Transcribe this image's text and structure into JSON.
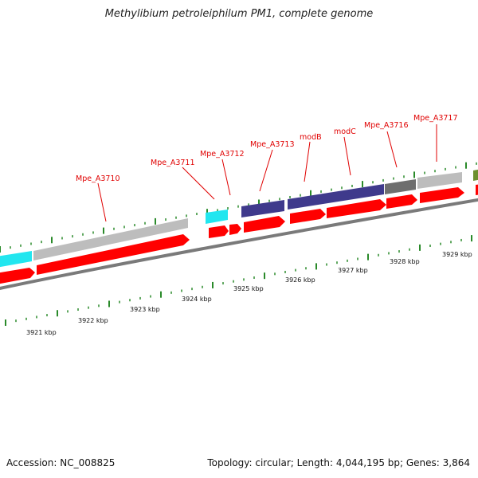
{
  "title": "Methylibium petroleiphilum PM1, complete genome",
  "footer": {
    "accession": "Accession: NC_008825",
    "summary": "Topology: circular; Length: 4,044,195 bp; Genes: 3,864"
  },
  "colors": {
    "gene_red": "#ff0000",
    "cyan": "#22e6ef",
    "purple": "#3f3a8c",
    "gray_light": "#bdbdbd",
    "gray_dark": "#6e6e6e",
    "olive": "#6e8f2e",
    "tick_green": "#2a8a2a",
    "label_red": "#e00000"
  },
  "gene_labels": [
    "Mpe_A3710",
    "Mpe_A3711",
    "Mpe_A3712",
    "Mpe_A3713",
    "modB",
    "modC",
    "Mpe_A3716",
    "Mpe_A3717"
  ],
  "scale_labels": [
    "3921 kbp",
    "3922 kbp",
    "3923 kbp",
    "3924 kbp",
    "3925 kbp",
    "3926 kbp",
    "3927 kbp",
    "3928 kbp",
    "3929 kbp"
  ]
}
